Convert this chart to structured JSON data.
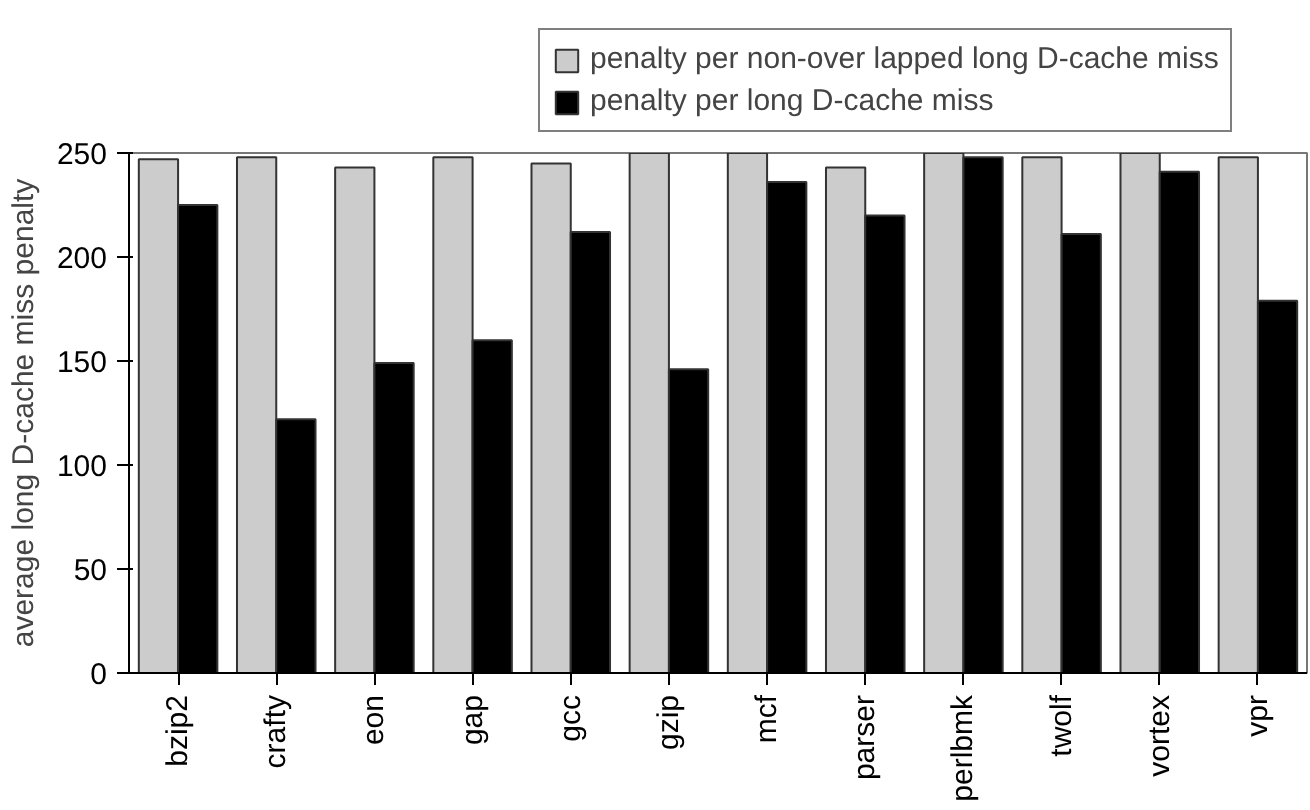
{
  "chart_data": {
    "type": "bar",
    "ylabel": "average long D-cache miss penalty",
    "categories": [
      "bzip2",
      "crafty",
      "eon",
      "gap",
      "gcc",
      "gzip",
      "mcf",
      "parser",
      "perlbmk",
      "twolf",
      "vortex",
      "vpr"
    ],
    "series": [
      {
        "name": "penalty per non-over lapped long D-cache miss",
        "color": "#cccccc",
        "values": [
          247,
          248,
          243,
          248,
          245,
          250,
          250,
          243,
          250,
          248,
          250,
          248
        ]
      },
      {
        "name": "penalty per long D-cache miss",
        "color": "#000000",
        "values": [
          225,
          122,
          149,
          160,
          212,
          146,
          236,
          220,
          248,
          211,
          241,
          179
        ]
      }
    ],
    "ylim": [
      0,
      250
    ],
    "yticks": [
      0,
      50,
      100,
      150,
      200,
      250
    ],
    "grid": false,
    "legend": "top"
  }
}
